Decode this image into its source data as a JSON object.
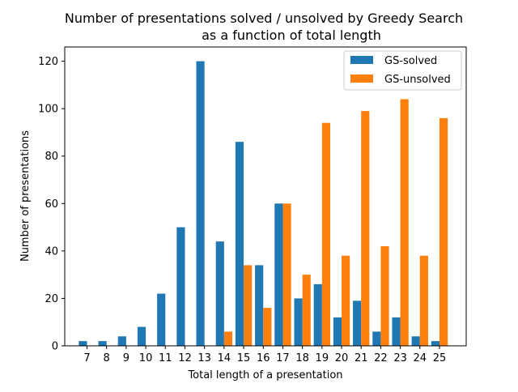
{
  "chart_data": {
    "type": "bar",
    "title_line1": "Number of presentations solved / unsolved by Greedy Search",
    "title_line2": "as a function of total length",
    "xlabel": "Total length of a presentation",
    "ylabel": "Number of presentations",
    "categories": [
      "7",
      "8",
      "9",
      "10",
      "11",
      "12",
      "13",
      "14",
      "15",
      "16",
      "17",
      "18",
      "19",
      "20",
      "21",
      "22",
      "23",
      "24",
      "25"
    ],
    "ylim": [
      0,
      126
    ],
    "yticks": [
      0,
      20,
      40,
      60,
      80,
      100,
      120
    ],
    "grid": false,
    "legend_position": "top-right",
    "series": [
      {
        "name": "GS-solved",
        "color": "#1f77b4",
        "values": [
          2,
          2,
          4,
          8,
          22,
          50,
          120,
          44,
          86,
          34,
          60,
          20,
          26,
          12,
          19,
          6,
          12,
          4,
          2
        ]
      },
      {
        "name": "GS-unsolved",
        "color": "#ff7f0e",
        "values": [
          0,
          0,
          0,
          0,
          0,
          0,
          0,
          6,
          34,
          16,
          60,
          30,
          94,
          38,
          99,
          42,
          104,
          38,
          96
        ]
      }
    ]
  }
}
